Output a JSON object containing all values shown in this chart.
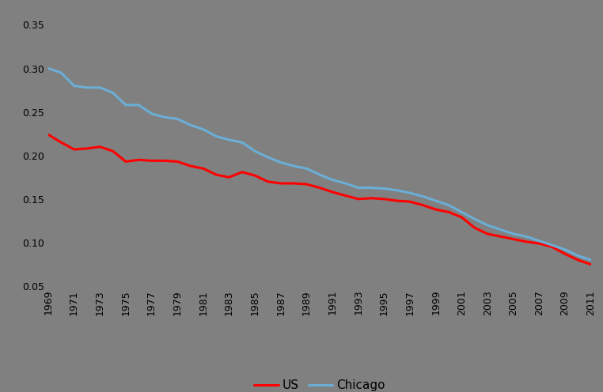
{
  "years": [
    1969,
    1970,
    1971,
    1972,
    1973,
    1974,
    1975,
    1976,
    1977,
    1978,
    1979,
    1980,
    1981,
    1982,
    1983,
    1984,
    1985,
    1986,
    1987,
    1988,
    1989,
    1990,
    1991,
    1992,
    1993,
    1994,
    1995,
    1996,
    1997,
    1998,
    1999,
    2000,
    2001,
    2002,
    2003,
    2004,
    2005,
    2006,
    2007,
    2008,
    2009,
    2010,
    2011
  ],
  "us": [
    0.224,
    0.215,
    0.207,
    0.208,
    0.21,
    0.205,
    0.193,
    0.195,
    0.194,
    0.194,
    0.193,
    0.188,
    0.185,
    0.178,
    0.175,
    0.181,
    0.177,
    0.17,
    0.168,
    0.168,
    0.167,
    0.163,
    0.158,
    0.154,
    0.15,
    0.151,
    0.15,
    0.148,
    0.147,
    0.143,
    0.138,
    0.135,
    0.129,
    0.117,
    0.11,
    0.107,
    0.104,
    0.101,
    0.099,
    0.095,
    0.087,
    0.08,
    0.075
  ],
  "chicago": [
    0.3,
    0.295,
    0.28,
    0.278,
    0.278,
    0.272,
    0.258,
    0.258,
    0.248,
    0.244,
    0.242,
    0.235,
    0.23,
    0.222,
    0.218,
    0.215,
    0.205,
    0.198,
    0.192,
    0.188,
    0.185,
    0.178,
    0.172,
    0.168,
    0.163,
    0.163,
    0.162,
    0.16,
    0.157,
    0.153,
    0.148,
    0.143,
    0.135,
    0.127,
    0.12,
    0.115,
    0.11,
    0.107,
    0.102,
    0.097,
    0.092,
    0.085,
    0.08
  ],
  "us_color": "#ff0000",
  "chicago_color": "#6baed6",
  "background_color": "#808080",
  "ylim": [
    0.05,
    0.365
  ],
  "yticks": [
    0.05,
    0.1,
    0.15,
    0.2,
    0.25,
    0.3,
    0.35
  ],
  "line_width": 2.2,
  "legend_labels": [
    "US",
    "Chicago"
  ],
  "figure_bg": "#808080",
  "xtick_years": [
    1969,
    1971,
    1973,
    1975,
    1977,
    1979,
    1981,
    1983,
    1985,
    1987,
    1989,
    1991,
    1993,
    1995,
    1997,
    1999,
    2001,
    2003,
    2005,
    2007,
    2009,
    2011
  ]
}
